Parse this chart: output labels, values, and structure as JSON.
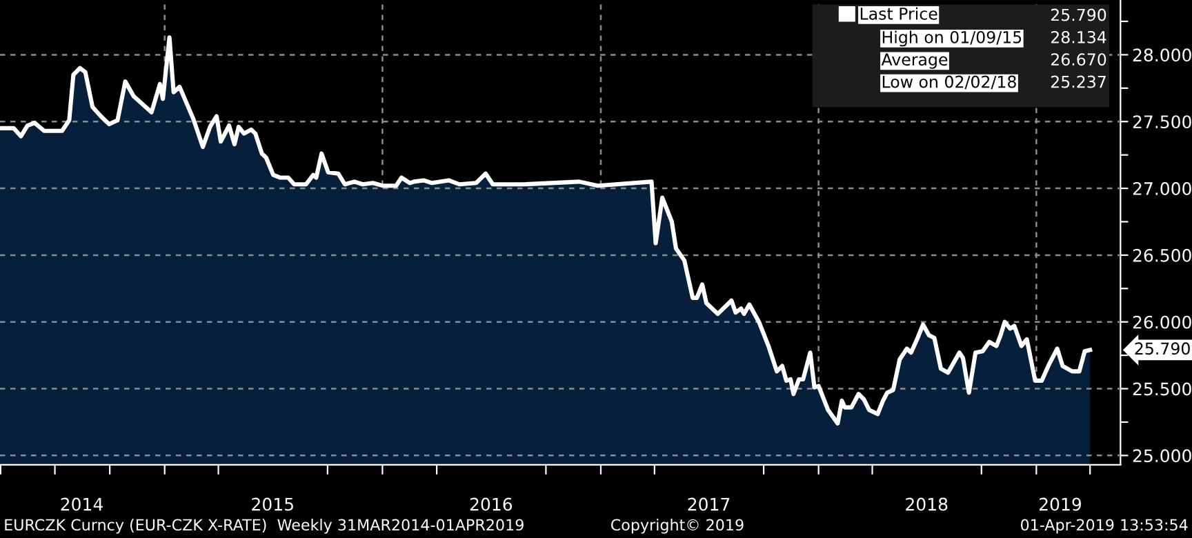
{
  "chart_data": {
    "type": "area",
    "x": [
      "2014-03-31",
      "2014-04-23",
      "2014-05-05",
      "2014-05-16",
      "2014-05-28",
      "2014-06-13",
      "2014-07-13",
      "2014-07-25",
      "2014-08-01",
      "2014-08-12",
      "2014-08-21",
      "2014-09-02",
      "2014-09-16",
      "2014-09-30",
      "2014-10-14",
      "2014-10-27",
      "2014-11-10",
      "2014-12-10",
      "2014-12-24",
      "2014-12-29",
      "2015-01-09",
      "2015-01-16",
      "2015-01-26",
      "2015-02-18",
      "2015-03-06",
      "2015-03-18",
      "2015-03-29",
      "2015-04-05",
      "2015-04-19",
      "2015-04-28",
      "2015-05-05",
      "2015-05-14",
      "2015-05-26",
      "2015-06-02",
      "2015-06-13",
      "2015-06-20",
      "2015-07-02",
      "2015-07-14",
      "2015-07-27",
      "2015-08-06",
      "2015-08-26",
      "2015-09-07",
      "2015-09-12",
      "2015-09-21",
      "2015-10-02",
      "2015-10-19",
      "2015-10-30",
      "2015-11-15",
      "2015-11-29",
      "2015-12-16",
      "2016-01-01",
      "2016-01-24",
      "2016-02-02",
      "2016-02-16",
      "2016-02-23",
      "2016-03-10",
      "2016-03-24",
      "2016-04-21",
      "2016-05-09",
      "2016-06-06",
      "2016-06-22",
      "2016-07-04",
      "2016-08-26",
      "2016-11-26",
      "2016-12-27",
      "2017-03-27",
      "2017-04-03",
      "2017-04-14",
      "2017-04-30",
      "2017-05-07",
      "2017-05-21",
      "2017-06-04",
      "2017-06-11",
      "2017-06-20",
      "2017-06-27",
      "2017-07-16",
      "2017-08-08",
      "2017-08-15",
      "2017-08-24",
      "2017-08-29",
      "2017-09-07",
      "2017-09-23",
      "2017-10-09",
      "2017-10-23",
      "2017-11-01",
      "2017-11-08",
      "2017-11-15",
      "2017-11-20",
      "2017-11-29",
      "2017-12-06",
      "2017-12-18",
      "2017-12-25",
      "2018-01-01",
      "2018-01-17",
      "2018-02-02",
      "2018-02-09",
      "2018-02-14",
      "2018-02-25",
      "2018-03-09",
      "2018-03-18",
      "2018-03-27",
      "2018-04-10",
      "2018-04-19",
      "2018-04-26",
      "2018-05-06",
      "2018-05-17",
      "2018-05-29",
      "2018-06-05",
      "2018-06-16",
      "2018-06-25",
      "2018-07-05",
      "2018-07-14",
      "2018-07-25",
      "2018-08-06",
      "2018-08-25",
      "2018-08-31",
      "2018-09-10",
      "2018-09-21",
      "2018-10-03",
      "2018-10-14",
      "2018-10-26",
      "2018-11-02",
      "2018-11-09",
      "2018-11-18",
      "2018-11-25",
      "2018-12-07",
      "2018-12-16",
      "2018-12-30",
      "2019-01-10",
      "2019-01-22",
      "2019-02-05",
      "2019-02-14",
      "2019-03-02",
      "2019-03-14",
      "2019-03-23",
      "2019-04-01"
    ],
    "series": [
      {
        "name": "Last Price",
        "color": "#ffffff",
        "values": [
          27.45,
          27.45,
          27.39,
          27.47,
          27.49,
          27.43,
          27.43,
          27.51,
          27.85,
          27.9,
          27.87,
          27.61,
          27.54,
          27.48,
          27.51,
          27.8,
          27.69,
          27.57,
          27.78,
          27.67,
          28.13,
          27.72,
          27.76,
          27.52,
          27.31,
          27.46,
          27.54,
          27.35,
          27.47,
          27.33,
          27.46,
          27.41,
          27.44,
          27.41,
          27.26,
          27.23,
          27.1,
          27.08,
          27.08,
          27.03,
          27.03,
          27.1,
          27.08,
          27.26,
          27.12,
          27.11,
          27.03,
          27.05,
          27.03,
          27.04,
          27.02,
          27.02,
          27.08,
          27.04,
          27.05,
          27.06,
          27.04,
          27.06,
          27.03,
          27.04,
          27.11,
          27.03,
          27.03,
          27.05,
          27.02,
          27.05,
          26.59,
          26.93,
          26.75,
          26.55,
          26.46,
          26.18,
          26.18,
          26.28,
          26.14,
          26.06,
          26.16,
          26.07,
          26.1,
          26.06,
          26.13,
          26.0,
          25.82,
          25.63,
          25.67,
          25.56,
          25.57,
          25.46,
          25.57,
          25.57,
          25.77,
          25.51,
          25.52,
          25.34,
          25.24,
          25.41,
          25.36,
          25.36,
          25.46,
          25.42,
          25.34,
          25.31,
          25.41,
          25.47,
          25.49,
          25.72,
          25.8,
          25.77,
          25.88,
          25.98,
          25.9,
          25.88,
          25.65,
          25.62,
          25.77,
          25.73,
          25.47,
          25.77,
          25.78,
          25.85,
          25.82,
          25.9,
          26.0,
          25.95,
          25.97,
          25.82,
          25.87,
          25.56,
          25.56,
          25.68,
          25.8,
          25.67,
          25.63,
          25.63,
          25.78,
          25.79
        ]
      }
    ],
    "xlim": [
      "2014-03-31",
      "2019-05-22"
    ],
    "xticks": [
      {
        "value": "2014-04-01",
        "label": null
      },
      {
        "value": "2014-07-01",
        "label": null
      },
      {
        "value": "2014-08-15",
        "label": "2014"
      },
      {
        "value": "2014-10-01",
        "label": null
      },
      {
        "value": "2015-01-01",
        "label": null
      },
      {
        "value": "2015-04-01",
        "label": null
      },
      {
        "value": "2015-07-01",
        "label": "2015"
      },
      {
        "value": "2015-10-01",
        "label": null
      },
      {
        "value": "2016-01-01",
        "label": null
      },
      {
        "value": "2016-04-01",
        "label": null
      },
      {
        "value": "2016-07-01",
        "label": "2016"
      },
      {
        "value": "2016-10-01",
        "label": null
      },
      {
        "value": "2017-01-01",
        "label": null
      },
      {
        "value": "2017-04-01",
        "label": null
      },
      {
        "value": "2017-07-01",
        "label": "2017"
      },
      {
        "value": "2017-10-01",
        "label": null
      },
      {
        "value": "2018-01-01",
        "label": null
      },
      {
        "value": "2018-04-01",
        "label": null
      },
      {
        "value": "2018-07-01",
        "label": "2018"
      },
      {
        "value": "2018-10-01",
        "label": null
      },
      {
        "value": "2019-01-01",
        "label": null
      },
      {
        "value": "2019-02-10",
        "label": "2019"
      },
      {
        "value": "2019-04-01",
        "label": null
      }
    ],
    "ylim": [
      24.93,
      28.41
    ],
    "yticks": [
      {
        "value": 25,
        "label": "25.000"
      },
      {
        "value": 25.25,
        "label": null
      },
      {
        "value": 25.5,
        "label": "25.500"
      },
      {
        "value": 25.75,
        "label": null
      },
      {
        "value": 26,
        "label": "26.000"
      },
      {
        "value": 26.25,
        "label": null
      },
      {
        "value": 26.5,
        "label": "26.500"
      },
      {
        "value": 26.75,
        "label": null
      },
      {
        "value": 27,
        "label": "27.000"
      },
      {
        "value": 27.25,
        "label": null
      },
      {
        "value": 27.5,
        "label": "27.500"
      },
      {
        "value": 27.75,
        "label": null
      },
      {
        "value": 28,
        "label": "28.000"
      },
      {
        "value": 28.25,
        "label": null
      }
    ],
    "grid": "y",
    "ref_lines": [
      {
        "axis": "x",
        "value": "2015-01-01",
        "color": "#8c8c8c",
        "line_style": "dashed"
      },
      {
        "axis": "x",
        "value": "2016-01-01",
        "color": "#8c8c8c",
        "line_style": "dashed"
      },
      {
        "axis": "x",
        "value": "2017-01-01",
        "color": "#8c8c8c",
        "line_style": "dashed"
      },
      {
        "axis": "x",
        "value": "2018-01-01",
        "color": "#8c8c8c",
        "line_style": "dashed"
      },
      {
        "axis": "x",
        "value": "2019-01-01",
        "color": "#8c8c8c",
        "line_style": "dashed"
      }
    ],
    "legend": "top right",
    "annotations": [
      "25.790",
      "High on 01/09/15",
      "28.134",
      "Average",
      "26.670",
      "Low on 02/02/18",
      "25.237",
      {
        "text": "25.790",
        "x": "2019-04-01",
        "y": 25.79
      },
      "EURCZK Curncy (EUR-CZK X-RATE)  Weekly 31MAR2014-01APR2019",
      "Copyright© 2019",
      "01-Apr-2019 13:53:54"
    ]
  }
}
